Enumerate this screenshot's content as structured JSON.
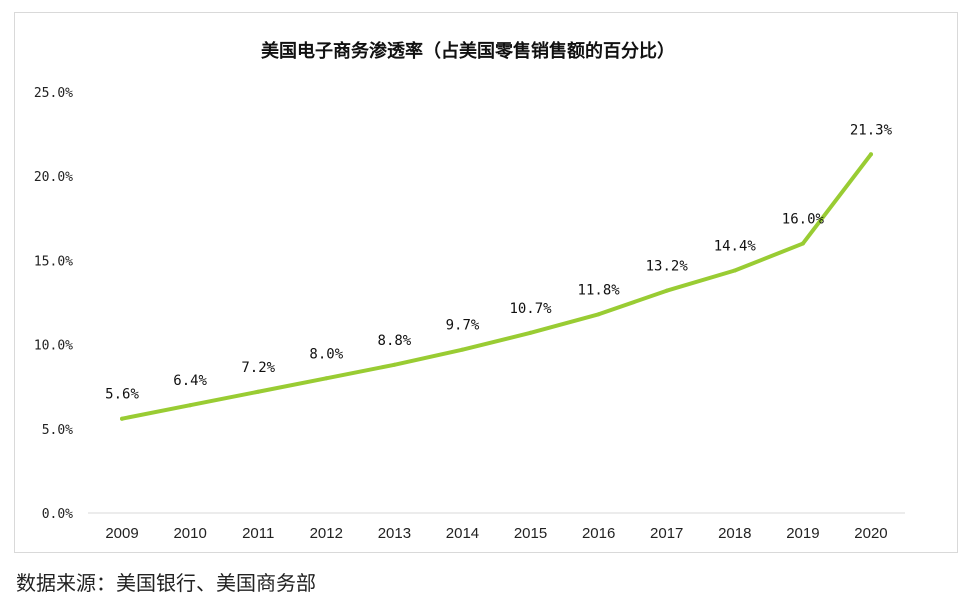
{
  "chart_data": {
    "type": "line",
    "title": "美国电子商务渗透率（占美国零售销售额的百分比）",
    "xlabel": "",
    "ylabel": "",
    "categories": [
      "2009",
      "2010",
      "2011",
      "2012",
      "2013",
      "2014",
      "2015",
      "2016",
      "2017",
      "2018",
      "2019",
      "2020"
    ],
    "series": [
      {
        "values": [
          5.6,
          6.4,
          7.2,
          8.0,
          8.8,
          9.7,
          10.7,
          11.8,
          13.2,
          14.4,
          16.0,
          21.3
        ],
        "data_labels": [
          "5.6%",
          "6.4%",
          "7.2%",
          "8.0%",
          "8.8%",
          "9.7%",
          "10.7%",
          "11.8%",
          "13.2%",
          "14.4%",
          "16.0%",
          "21.3%"
        ],
        "color": "#99cc33"
      }
    ],
    "ylim": [
      0,
      25
    ],
    "y_ticks": [
      0,
      5,
      10,
      15,
      20,
      25
    ],
    "y_tick_labels": [
      "0.0%",
      "5.0%",
      "10.0%",
      "15.0%",
      "20.0%",
      "25.0%"
    ],
    "grid": false,
    "legend": "none"
  },
  "source": "数据来源：美国银行、美国商务部"
}
